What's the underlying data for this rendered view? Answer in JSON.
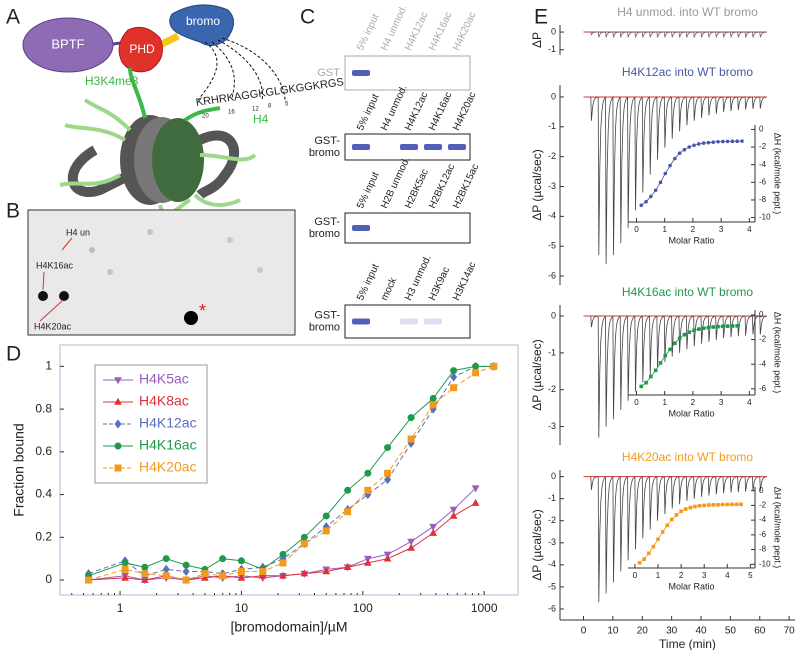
{
  "panels": {
    "a": "A",
    "b": "B",
    "c": "C",
    "d": "D",
    "e": "E"
  },
  "diagram": {
    "bptf": "BPTF",
    "phd": "PHD",
    "bromo": "bromo",
    "h3_mark": "H3K4me3",
    "h4": "H4",
    "sequence": "KRHRKAGGKGLGKGGKRGS",
    "positions": [
      "20",
      "16",
      "12",
      "8",
      "5"
    ]
  },
  "dot_blot": {
    "labels": [
      "H4 un",
      "H4K16ac",
      "H4K20ac"
    ],
    "marker": "*"
  },
  "pulldowns": [
    {
      "lanes": [
        "5% input",
        "H4 unmod.",
        "H4K12ac",
        "H4K16ac",
        "H4K20ac"
      ],
      "label": [
        "GST"
      ]
    },
    {
      "lanes": [
        "5% input",
        "H4 unmod.",
        "H4K12ac",
        "H4K16ac",
        "H4K20ac"
      ],
      "label": [
        "GST-",
        "bromo"
      ]
    },
    {
      "lanes": [
        "5% input",
        "H2B unmod.",
        "H2BK5ac",
        "H2BK12ac",
        "H2BK15ac"
      ],
      "label": [
        "GST-",
        "bromo"
      ]
    },
    {
      "lanes": [
        "5% input",
        "mock",
        "H3 unmod.",
        "H3K9ac",
        "H3K14ac"
      ],
      "label": [
        "GST-",
        "bromo"
      ]
    }
  ],
  "chart_data": [
    {
      "type": "line",
      "xscale": "log",
      "xlabel": "[bromodomain]/µM",
      "ylabel": "Fraction bound",
      "x": [
        0.55,
        1.1,
        1.6,
        2.4,
        3.5,
        5,
        7,
        10,
        15,
        22,
        33,
        50,
        75,
        110,
        160,
        250,
        380,
        560,
        850,
        1200
      ],
      "xlim": [
        0.32,
        1900
      ],
      "xticks": [
        1,
        10,
        100,
        1000
      ],
      "ylim": [
        -0.07,
        1.1
      ],
      "yticks": [
        0,
        0.2,
        0.4,
        0.6,
        0.8,
        1
      ],
      "legend": "upper left",
      "series": [
        {
          "name": "H4K5ac",
          "color": "#9a5cc0",
          "marker": "triangle-down",
          "linestyle": "solid",
          "values": [
            0.0,
            0.02,
            0.0,
            0.01,
            0.0,
            0.02,
            0.01,
            0.02,
            0.01,
            0.02,
            0.03,
            0.05,
            0.06,
            0.1,
            0.12,
            0.18,
            0.25,
            0.33,
            0.43,
            null
          ]
        },
        {
          "name": "H4K8ac",
          "color": "#e0303a",
          "marker": "triangle-up",
          "linestyle": "solid",
          "values": [
            0.0,
            0.01,
            0.0,
            0.02,
            0.0,
            0.01,
            0.02,
            0.01,
            0.02,
            0.02,
            0.03,
            0.04,
            0.06,
            0.08,
            0.1,
            0.15,
            0.22,
            0.3,
            0.36,
            null
          ]
        },
        {
          "name": "H4K12ac",
          "color": "#5a6fc0",
          "marker": "diamond",
          "linestyle": "dashed",
          "values": [
            0.03,
            0.09,
            0.02,
            0.05,
            0.04,
            0.04,
            0.03,
            0.05,
            0.06,
            0.1,
            0.17,
            0.25,
            0.33,
            0.4,
            0.47,
            0.64,
            0.8,
            0.95,
            1.0,
            1.0
          ]
        },
        {
          "name": "H4K16ac",
          "color": "#1f9a4a",
          "marker": "circle",
          "linestyle": "solid",
          "values": [
            0.02,
            0.08,
            0.06,
            0.1,
            0.07,
            0.05,
            0.1,
            0.09,
            0.05,
            0.12,
            0.2,
            0.3,
            0.42,
            0.5,
            0.62,
            0.76,
            0.85,
            0.98,
            1.0,
            1.0
          ]
        },
        {
          "name": "H4K20ac",
          "color": "#f39a1e",
          "marker": "square",
          "linestyle": "dashed",
          "values": [
            0.0,
            0.05,
            0.03,
            0.02,
            0.0,
            0.03,
            0.02,
            0.04,
            0.04,
            0.08,
            0.17,
            0.23,
            0.32,
            0.42,
            0.5,
            0.66,
            0.82,
            0.9,
            0.97,
            1.0
          ]
        }
      ]
    },
    {
      "type": "thermogram",
      "title": "H4 unmod. into WT bromo",
      "title_color": "#999999",
      "ylabel": "ΔP",
      "color": "#666666",
      "baseline_color": "#d83030",
      "x": [
        2.5,
        5,
        7.5,
        10,
        12.5,
        15,
        17.5,
        20,
        22.5,
        25,
        27.5,
        30,
        32.5,
        35,
        37.5,
        40,
        42.5,
        45,
        47.5,
        50,
        52.5,
        55,
        57.5,
        60
      ],
      "xlim": [
        -8,
        72
      ],
      "ylim": [
        -1.3,
        0.4
      ],
      "yticks": [
        0,
        -1
      ],
      "values": [
        -0.15,
        -0.3,
        -0.3,
        -0.3,
        -0.3,
        -0.3,
        -0.3,
        -0.3,
        -0.3,
        -0.3,
        -0.3,
        -0.3,
        -0.3,
        -0.3,
        -0.3,
        -0.3,
        -0.3,
        -0.3,
        -0.3,
        -0.3,
        -0.3,
        -0.3,
        -0.3,
        -0.3
      ]
    },
    {
      "type": "thermogram",
      "title": "H4K12ac into WT bromo",
      "title_color": "#4a55a8",
      "ylabel": "ΔP (µcal/sec)",
      "color": "#444444",
      "baseline_color": "#d83030",
      "x": [
        2.5,
        5,
        7.5,
        10,
        12.5,
        15,
        17.5,
        20,
        22.5,
        25,
        27.5,
        30,
        32.5,
        35,
        37.5,
        40,
        42.5,
        45,
        47.5,
        50,
        52.5,
        55,
        57.5,
        60
      ],
      "xlim": [
        -8,
        72
      ],
      "ylim": [
        -6.3,
        0.4
      ],
      "yticks": [
        0,
        -1,
        -2,
        -3,
        -4,
        -5,
        -6
      ],
      "values": [
        -0.8,
        -5.3,
        -5.6,
        -5.3,
        -4.9,
        -4.4,
        -3.8,
        -3.2,
        -2.6,
        -2.1,
        -1.7,
        -1.4,
        -1.15,
        -0.95,
        -0.8,
        -0.7,
        -0.62,
        -0.56,
        -0.5,
        -0.47,
        -0.44,
        -0.42,
        -0.4,
        -0.39
      ]
    },
    {
      "type": "thermogram",
      "title": "H4K16ac into WT bromo",
      "title_color": "#1f9a4a",
      "ylabel": "ΔP (µcal/sec)",
      "color": "#444444",
      "baseline_color": "#d83030",
      "x": [
        2.5,
        5,
        7.5,
        10,
        12.5,
        15,
        17.5,
        20,
        22.5,
        25,
        27.5,
        30,
        32.5,
        35,
        37.5,
        40,
        42.5,
        45,
        47.5,
        50,
        52.5,
        55,
        57.5,
        60
      ],
      "xlim": [
        -8,
        72
      ],
      "ylim": [
        -3.5,
        0.3
      ],
      "yticks": [
        0,
        -1,
        -2,
        -3
      ],
      "values": [
        -0.3,
        -3.3,
        -3.0,
        -2.8,
        -2.55,
        -2.3,
        -2.05,
        -1.8,
        -1.6,
        -1.4,
        -1.25,
        -1.1,
        -1.0,
        -0.9,
        -0.82,
        -0.75,
        -0.7,
        -0.65,
        -0.6,
        -0.57,
        -0.55,
        -0.53,
        -0.5,
        -0.5
      ]
    },
    {
      "type": "thermogram",
      "title": "H4K20ac into WT bromo",
      "title_color": "#f39a1e",
      "ylabel": "ΔP (µcal/sec)",
      "xlabel": "Time (min)",
      "color": "#444444",
      "baseline_color": "#d83030",
      "x": [
        2.5,
        5,
        7.5,
        10,
        12.5,
        15,
        17.5,
        20,
        22.5,
        25,
        27.5,
        30,
        32.5,
        35,
        37.5,
        40,
        42.5,
        45,
        47.5,
        50,
        52.5,
        55,
        57.5,
        60
      ],
      "xlim": [
        -8,
        72
      ],
      "xticks": [
        0,
        10,
        20,
        30,
        40,
        50,
        60,
        70
      ],
      "ylim": [
        -6.5,
        0.3
      ],
      "yticks": [
        0,
        -1,
        -2,
        -3,
        -4,
        -5,
        -6
      ],
      "values": [
        -0.6,
        -5.7,
        -5.3,
        -4.8,
        -4.3,
        -3.8,
        -3.3,
        -2.8,
        -2.4,
        -2.0,
        -1.7,
        -1.45,
        -1.25,
        -1.1,
        -1.0,
        -0.92,
        -0.86,
        -0.8,
        -0.76,
        -0.72,
        -0.7,
        -0.68,
        -0.66,
        -0.65
      ]
    },
    {
      "type": "line",
      "xlabel": "Molar Ratio",
      "ylabel": "ΔH (kcal/mole pept.)",
      "yaxis": "right",
      "color": "#4a55a8",
      "marker": "circle",
      "x": [
        0.17,
        0.34,
        0.51,
        0.68,
        0.85,
        1.02,
        1.19,
        1.36,
        1.53,
        1.7,
        1.87,
        2.04,
        2.21,
        2.38,
        2.55,
        2.72,
        2.89,
        3.06,
        3.23,
        3.4,
        3.57,
        3.74
      ],
      "values": [
        -8.6,
        -8.2,
        -7.6,
        -6.9,
        -6.0,
        -5.0,
        -4.1,
        -3.3,
        -2.7,
        -2.3,
        -2.0,
        -1.8,
        -1.65,
        -1.55,
        -1.5,
        -1.45,
        -1.4,
        -1.38,
        -1.36,
        -1.35,
        -1.34,
        -1.33
      ],
      "xlim": [
        -0.3,
        4.2
      ],
      "xticks": [
        0,
        1,
        2,
        3,
        4
      ],
      "ylim": [
        -10.5,
        0.5
      ],
      "yticks": [
        0,
        -2,
        -4,
        -6,
        -8,
        -10
      ]
    },
    {
      "type": "line",
      "xlabel": "Molar Ratio",
      "ylabel": "ΔH (kcal/mole pept.)",
      "yaxis": "right",
      "color": "#1f9a4a",
      "marker": "square",
      "x": [
        0.17,
        0.34,
        0.51,
        0.68,
        0.85,
        1.02,
        1.19,
        1.36,
        1.53,
        1.7,
        1.87,
        2.04,
        2.21,
        2.38,
        2.55,
        2.72,
        2.89,
        3.06,
        3.23,
        3.4,
        3.57
      ],
      "values": [
        -5.8,
        -5.5,
        -5.0,
        -4.5,
        -3.9,
        -3.3,
        -2.8,
        -2.3,
        -1.9,
        -1.6,
        -1.4,
        -1.25,
        -1.15,
        -1.08,
        -1.02,
        -0.98,
        -0.95,
        -0.93,
        -0.91,
        -0.9,
        -0.89
      ],
      "xlim": [
        -0.3,
        4.2
      ],
      "xticks": [
        0,
        1,
        2,
        3,
        4
      ],
      "ylim": [
        -6.5,
        0.4
      ],
      "yticks": [
        0,
        -2,
        -4,
        -6
      ]
    },
    {
      "type": "line",
      "xlabel": "Molar Ratio",
      "ylabel": "ΔH (kcal/mole pept.)",
      "yaxis": "right",
      "color": "#f39a1e",
      "marker": "square",
      "x": [
        0.2,
        0.4,
        0.6,
        0.8,
        1.0,
        1.2,
        1.4,
        1.6,
        1.8,
        2.0,
        2.2,
        2.4,
        2.6,
        2.8,
        3.0,
        3.2,
        3.4,
        3.6,
        3.8,
        4.0,
        4.2,
        4.4,
        4.6
      ],
      "values": [
        -9.8,
        -9.3,
        -8.5,
        -7.6,
        -6.6,
        -5.6,
        -4.7,
        -3.9,
        -3.3,
        -2.8,
        -2.5,
        -2.3,
        -2.15,
        -2.05,
        -2.0,
        -1.95,
        -1.92,
        -1.9,
        -1.88,
        -1.87,
        -1.86,
        -1.85,
        -1.85
      ],
      "xlim": [
        -0.3,
        5.2
      ],
      "xticks": [
        0,
        1,
        2,
        3,
        4,
        5
      ],
      "ylim": [
        -10.5,
        0.5
      ],
      "yticks": [
        0,
        -2,
        -4,
        -6,
        -8,
        -10
      ]
    }
  ]
}
